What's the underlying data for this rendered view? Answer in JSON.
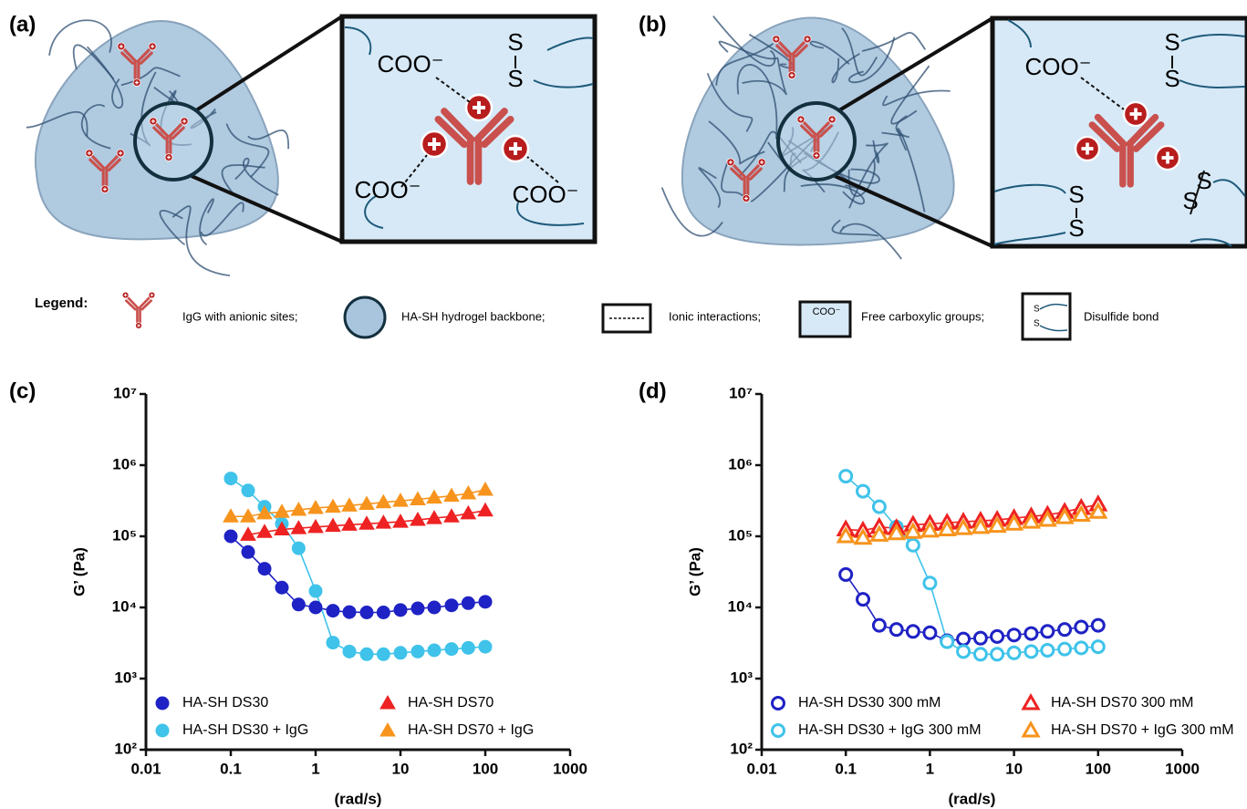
{
  "diagrams": [
    {
      "label": "(a)",
      "zoom": {
        "carboxyl": [
          "COO⁻",
          "COO⁻",
          "COO⁻"
        ],
        "disulfide": [
          [
            "S",
            "S"
          ]
        ]
      }
    },
    {
      "label": "(b)",
      "zoom": {
        "carboxyl": [
          "COO⁻"
        ],
        "disulfide": [
          [
            "S",
            "S"
          ],
          [
            "S",
            "S"
          ],
          [
            "S",
            "S"
          ]
        ]
      }
    }
  ],
  "legend": {
    "title": "Legend:",
    "items": [
      "IgG with anionic sites;",
      "HA-SH hydrogel backbone;",
      "Ionic interactions;",
      "Free carboxylic groups;",
      "Disulfide bond"
    ],
    "icon_carboxyl": "COO⁻",
    "icon_disulfide": [
      "S",
      "S"
    ]
  },
  "chart_data": [
    {
      "type": "line",
      "panel_label": "(c)",
      "x_label": "(rad/s)",
      "y_label": "G’ (Pa)",
      "log_x": true,
      "log_y": true,
      "legend": "lower left",
      "xlim": [
        0.01,
        1000
      ],
      "xticks": [
        0.01,
        0.1,
        1,
        10,
        100,
        1000
      ],
      "ylim": [
        100,
        10000000
      ],
      "yticks": [
        {
          "value": 100,
          "label": "10²"
        },
        {
          "value": 1000,
          "label": "10³"
        },
        {
          "value": 10000,
          "label": "10⁴"
        },
        {
          "value": 100000,
          "label": "10⁵"
        },
        {
          "value": 1000000,
          "label": "10⁶"
        },
        {
          "value": 10000000,
          "label": "10⁷"
        }
      ],
      "series": [
        {
          "name": "HA-SH DS30",
          "color": "#1f22c4",
          "marker": "circle",
          "filled": true,
          "x": [
            0.1,
            0.16,
            0.25,
            0.4,
            0.63,
            1,
            1.6,
            2.5,
            4,
            6.3,
            10,
            16,
            25,
            40,
            63,
            100
          ],
          "values": [
            100000,
            60000,
            35000,
            19000,
            11000,
            10000,
            9000,
            8600,
            8500,
            8500,
            9200,
            9700,
            10000,
            10700,
            11500,
            12000
          ]
        },
        {
          "name": "HA-SH DS30 + IgG",
          "color": "#3fc3ea",
          "marker": "circle",
          "filled": true,
          "x": [
            0.1,
            0.16,
            0.25,
            0.4,
            0.63,
            1,
            1.6,
            2.5,
            4,
            6.3,
            10,
            16,
            25,
            40,
            63,
            100
          ],
          "values": [
            650000,
            440000,
            260000,
            150000,
            68000,
            17000,
            3200,
            2400,
            2200,
            2200,
            2300,
            2400,
            2500,
            2600,
            2700,
            2800
          ]
        },
        {
          "name": "HA-SH DS70",
          "color": "#ee2222",
          "marker": "triangle",
          "filled": true,
          "x": [
            0.16,
            0.25,
            0.4,
            0.63,
            1,
            1.6,
            2.5,
            4,
            6.3,
            10,
            16,
            25,
            40,
            63,
            100
          ],
          "values": [
            105000,
            115000,
            125000,
            130000,
            135000,
            140000,
            145000,
            150000,
            155000,
            160000,
            170000,
            180000,
            190000,
            210000,
            230000
          ]
        },
        {
          "name": "HA-SH DS70 + IgG",
          "color": "#f7941d",
          "marker": "triangle",
          "filled": true,
          "x": [
            0.1,
            0.16,
            0.25,
            0.4,
            0.63,
            1,
            1.6,
            2.5,
            4,
            6.3,
            10,
            16,
            25,
            40,
            63,
            100
          ],
          "values": [
            190000,
            190000,
            210000,
            220000,
            235000,
            250000,
            260000,
            270000,
            285000,
            300000,
            315000,
            330000,
            350000,
            370000,
            400000,
            450000
          ]
        }
      ]
    },
    {
      "type": "line",
      "panel_label": "(d)",
      "x_label": "(rad/s)",
      "y_label": "G’ (Pa)",
      "log_x": true,
      "log_y": true,
      "legend": "lower left",
      "xlim": [
        0.01,
        1000
      ],
      "xticks": [
        0.01,
        0.1,
        1,
        10,
        100,
        1000
      ],
      "ylim": [
        100,
        10000000
      ],
      "yticks": [
        {
          "value": 100,
          "label": "10²"
        },
        {
          "value": 1000,
          "label": "10³"
        },
        {
          "value": 10000,
          "label": "10⁴"
        },
        {
          "value": 100000,
          "label": "10⁵"
        },
        {
          "value": 1000000,
          "label": "10⁶"
        },
        {
          "value": 10000000,
          "label": "10⁷"
        }
      ],
      "series": [
        {
          "name": "HA-SH DS30 300 mM",
          "color": "#1f22c4",
          "marker": "circle",
          "filled": false,
          "x": [
            0.1,
            0.16,
            0.25,
            0.4,
            0.63,
            1,
            1.6,
            2.5,
            4,
            6.3,
            10,
            16,
            25,
            40,
            63,
            100
          ],
          "values": [
            29000,
            13000,
            5600,
            4900,
            4600,
            4400,
            3400,
            3600,
            3700,
            3900,
            4100,
            4300,
            4600,
            4900,
            5300,
            5600
          ]
        },
        {
          "name": "HA-SH DS30 + IgG 300 mM",
          "color": "#3fc3ea",
          "marker": "circle",
          "filled": false,
          "x": [
            0.1,
            0.16,
            0.25,
            0.4,
            0.63,
            1,
            1.6,
            2.5,
            4,
            6.3,
            10,
            16,
            25,
            40,
            63,
            100
          ],
          "values": [
            700000,
            430000,
            260000,
            135000,
            75000,
            22000,
            3300,
            2400,
            2200,
            2200,
            2300,
            2400,
            2500,
            2600,
            2700,
            2800
          ]
        },
        {
          "name": "HA-SH DS70 300 mM",
          "color": "#ee2222",
          "marker": "triangle",
          "filled": false,
          "x": [
            0.1,
            0.16,
            0.25,
            0.4,
            0.63,
            1,
            1.6,
            2.5,
            4,
            6.3,
            10,
            16,
            25,
            40,
            63,
            100
          ],
          "values": [
            125000,
            120000,
            135000,
            130000,
            145000,
            150000,
            155000,
            160000,
            165000,
            170000,
            180000,
            190000,
            200000,
            220000,
            250000,
            280000
          ]
        },
        {
          "name": "HA-SH DS70 + IgG 300 mM",
          "color": "#f7941d",
          "marker": "triangle",
          "filled": false,
          "x": [
            0.1,
            0.16,
            0.25,
            0.4,
            0.63,
            1,
            1.6,
            2.5,
            4,
            6.3,
            10,
            16,
            25,
            40,
            63,
            100
          ],
          "values": [
            100000,
            95000,
            105000,
            110000,
            115000,
            120000,
            125000,
            130000,
            135000,
            140000,
            150000,
            160000,
            170000,
            185000,
            200000,
            220000
          ]
        }
      ]
    }
  ]
}
